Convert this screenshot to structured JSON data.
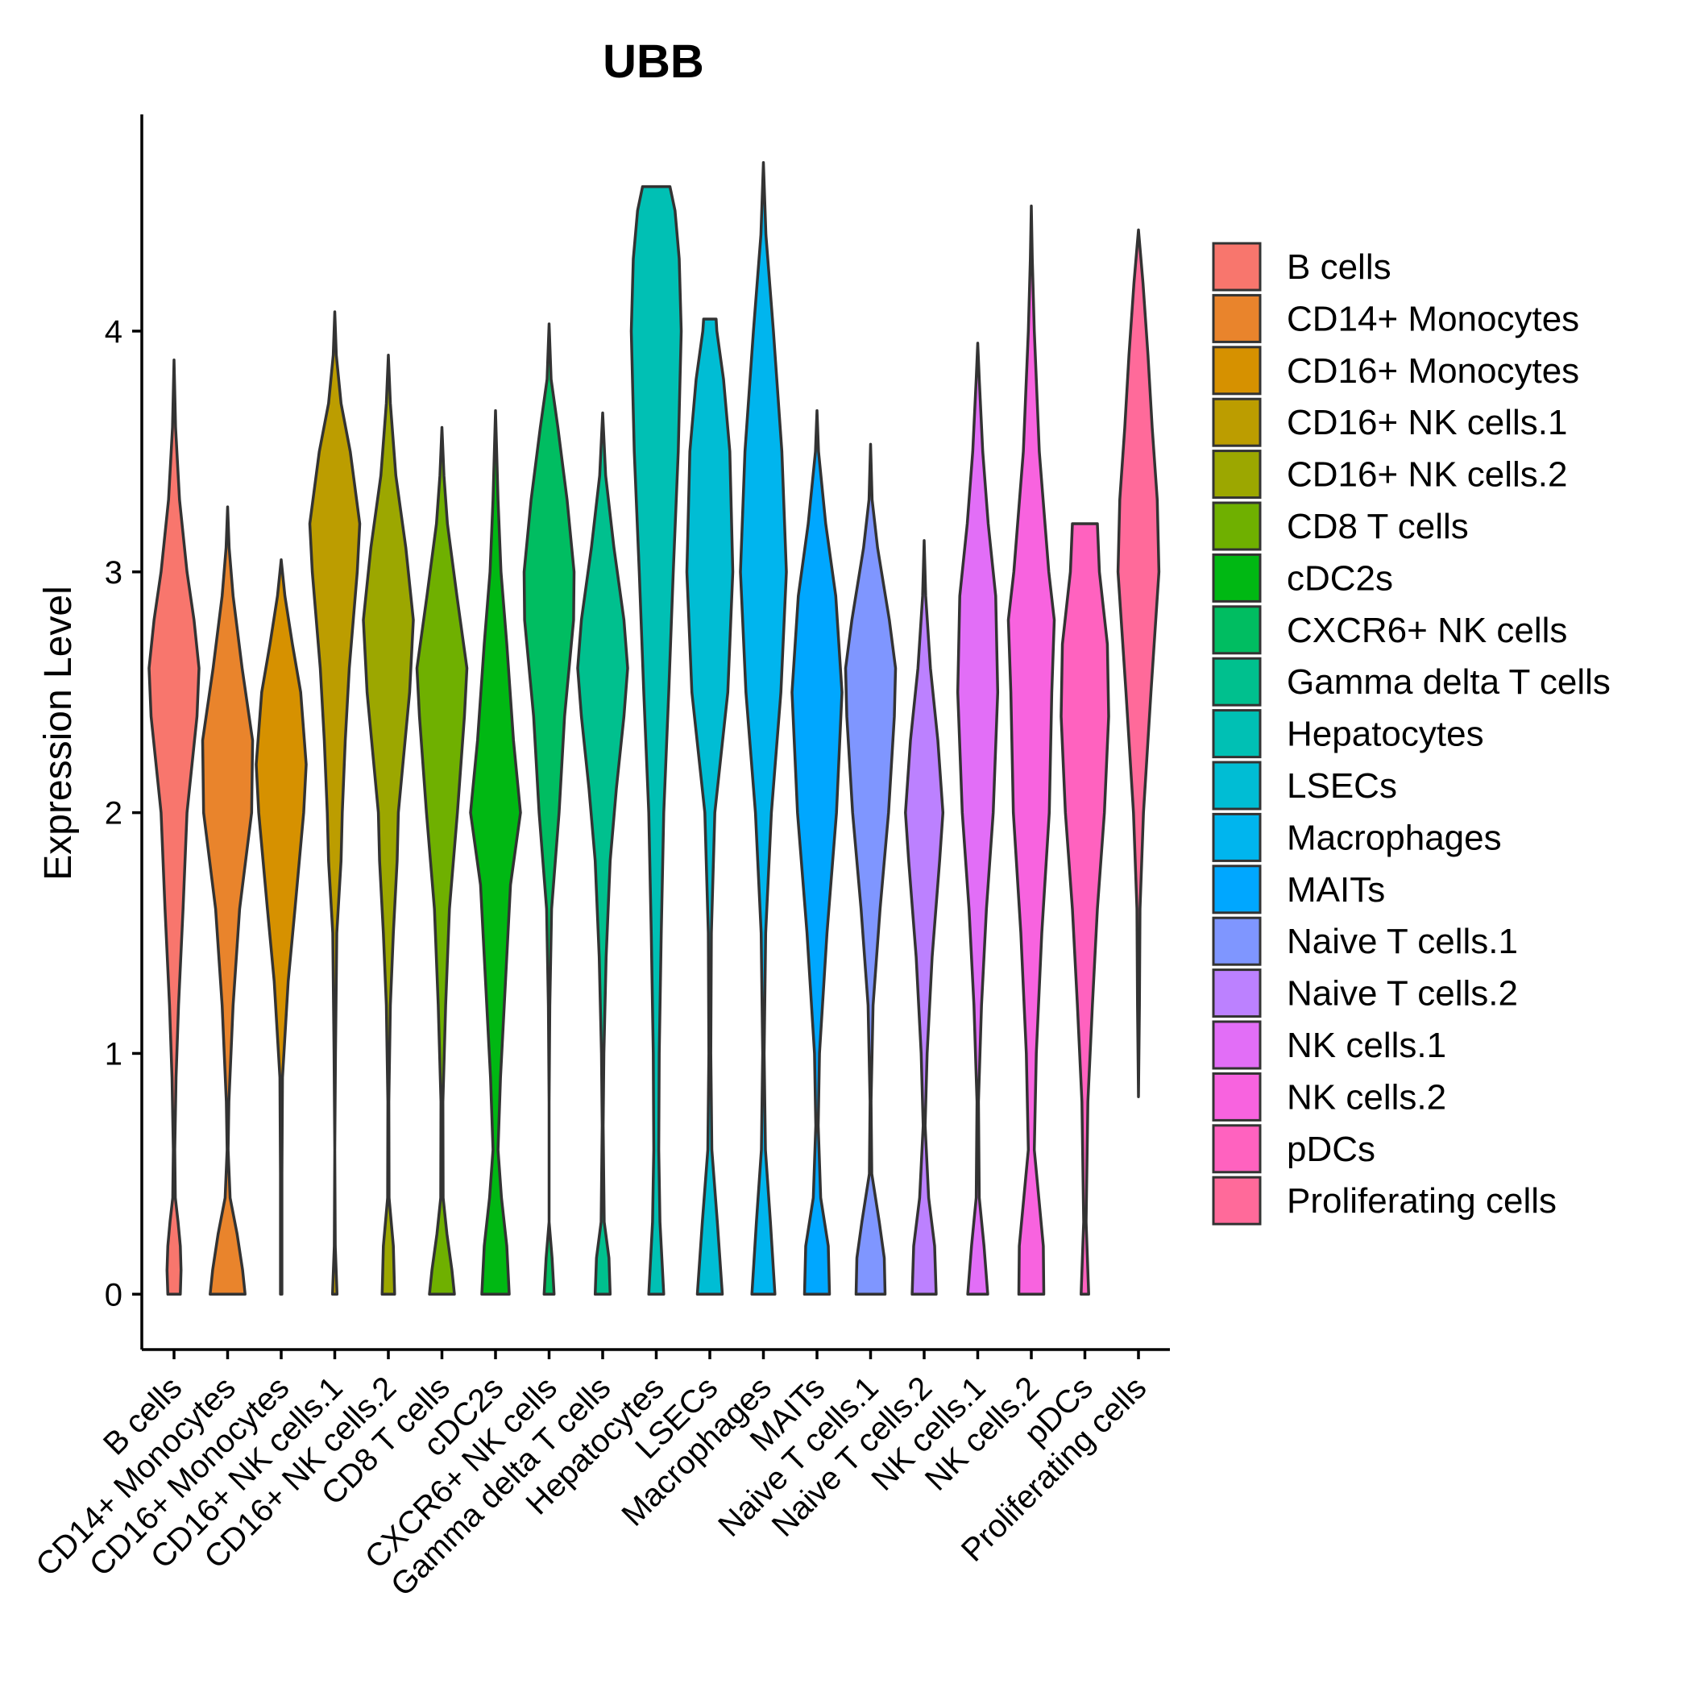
{
  "chart_data": {
    "type": "violin",
    "title": "UBB",
    "xlabel": "",
    "ylabel": "Expression Level",
    "ylim": [
      -0.23,
      4.9
    ],
    "yticks": [
      0,
      1,
      2,
      3,
      4
    ],
    "categories": [
      "B cells",
      "CD14+ Monocytes",
      "CD16+ Monocytes",
      "CD16+ NK cells.1",
      "CD16+ NK cells.2",
      "CD8 T cells",
      "cDC2s",
      "CXCR6+ NK cells",
      "Gamma delta T cells",
      "Hepatocytes",
      "LSECs",
      "Macrophages",
      "MAITs",
      "Naive T cells.1",
      "Naive T cells.2",
      "NK cells.1",
      "NK cells.2",
      "pDCs",
      "Proliferating cells"
    ],
    "colors": [
      "#F8766D",
      "#E9842C",
      "#D69100",
      "#BC9D00",
      "#9CA700",
      "#6FB000",
      "#00B813",
      "#00BD61",
      "#00C08E",
      "#00C0B4",
      "#00BDD4",
      "#00B5EE",
      "#00A7FF",
      "#7F96FF",
      "#BC81FF",
      "#E26EF7",
      "#F863DF",
      "#FF62BF",
      "#FF6A9A"
    ],
    "legend": {
      "position": "right",
      "entries": [
        "B cells",
        "CD14+ Monocytes",
        "CD16+ Monocytes",
        "CD16+ NK cells.1",
        "CD16+ NK cells.2",
        "CD8 T cells",
        "cDC2s",
        "CXCR6+ NK cells",
        "Gamma delta T cells",
        "Hepatocytes",
        "LSECs",
        "Macrophages",
        "MAITs",
        "Naive T cells.1",
        "Naive T cells.2",
        "NK cells.1",
        "NK cells.2",
        "pDCs",
        "Proliferating cells"
      ]
    },
    "series": [
      {
        "name": "B cells",
        "min": 0,
        "max": 3.88,
        "profile": [
          [
            0,
            0.25
          ],
          [
            0.1,
            0.28
          ],
          [
            0.2,
            0.25
          ],
          [
            0.3,
            0.16
          ],
          [
            0.4,
            0.05
          ],
          [
            0.6,
            0.03
          ],
          [
            0.9,
            0.08
          ],
          [
            1.2,
            0.18
          ],
          [
            1.6,
            0.36
          ],
          [
            2.0,
            0.52
          ],
          [
            2.4,
            0.92
          ],
          [
            2.6,
            1.0
          ],
          [
            2.8,
            0.8
          ],
          [
            3.0,
            0.52
          ],
          [
            3.3,
            0.22
          ],
          [
            3.6,
            0.06
          ],
          [
            3.88,
            0.0
          ]
        ]
      },
      {
        "name": "CD14+ Monocytes",
        "min": 0,
        "max": 3.27,
        "profile": [
          [
            0,
            0.7
          ],
          [
            0.1,
            0.6
          ],
          [
            0.25,
            0.38
          ],
          [
            0.4,
            0.1
          ],
          [
            0.6,
            0.02
          ],
          [
            0.8,
            0.05
          ],
          [
            1.2,
            0.22
          ],
          [
            1.6,
            0.48
          ],
          [
            2.0,
            0.96
          ],
          [
            2.3,
            1.0
          ],
          [
            2.6,
            0.58
          ],
          [
            2.9,
            0.22
          ],
          [
            3.1,
            0.06
          ],
          [
            3.27,
            0.0
          ]
        ]
      },
      {
        "name": "CD16+ Monocytes",
        "min": 0,
        "max": 3.05,
        "profile": [
          [
            0,
            0.03
          ],
          [
            0.5,
            0.03
          ],
          [
            0.9,
            0.05
          ],
          [
            1.3,
            0.28
          ],
          [
            1.6,
            0.55
          ],
          [
            2.0,
            0.9
          ],
          [
            2.2,
            1.0
          ],
          [
            2.5,
            0.78
          ],
          [
            2.7,
            0.45
          ],
          [
            2.9,
            0.15
          ],
          [
            3.05,
            0.0
          ]
        ]
      },
      {
        "name": "CD16+ NK cells.1",
        "min": 0,
        "max": 4.08,
        "profile": [
          [
            0,
            0.09
          ],
          [
            0.2,
            0.02
          ],
          [
            0.6,
            0.0
          ],
          [
            1.0,
            0.03
          ],
          [
            1.5,
            0.08
          ],
          [
            1.8,
            0.25
          ],
          [
            2.0,
            0.3
          ],
          [
            2.3,
            0.42
          ],
          [
            2.6,
            0.58
          ],
          [
            3.0,
            0.9
          ],
          [
            3.2,
            1.0
          ],
          [
            3.5,
            0.62
          ],
          [
            3.7,
            0.25
          ],
          [
            3.9,
            0.06
          ],
          [
            4.08,
            0.0
          ]
        ]
      },
      {
        "name": "CD16+ NK cells.2",
        "min": 0,
        "max": 3.9,
        "profile": [
          [
            0,
            0.25
          ],
          [
            0.2,
            0.2
          ],
          [
            0.4,
            0.03
          ],
          [
            0.8,
            0.02
          ],
          [
            1.2,
            0.08
          ],
          [
            1.5,
            0.2
          ],
          [
            1.8,
            0.35
          ],
          [
            2.0,
            0.4
          ],
          [
            2.5,
            0.85
          ],
          [
            2.8,
            1.0
          ],
          [
            3.1,
            0.7
          ],
          [
            3.4,
            0.3
          ],
          [
            3.7,
            0.08
          ],
          [
            3.9,
            0.0
          ]
        ]
      },
      {
        "name": "CD8 T cells",
        "min": 0,
        "max": 3.6,
        "profile": [
          [
            0,
            0.5
          ],
          [
            0.1,
            0.4
          ],
          [
            0.25,
            0.2
          ],
          [
            0.4,
            0.05
          ],
          [
            0.8,
            0.04
          ],
          [
            1.2,
            0.15
          ],
          [
            1.6,
            0.3
          ],
          [
            2.0,
            0.62
          ],
          [
            2.4,
            0.9
          ],
          [
            2.6,
            1.0
          ],
          [
            2.9,
            0.6
          ],
          [
            3.2,
            0.22
          ],
          [
            3.4,
            0.08
          ],
          [
            3.6,
            0.0
          ]
        ]
      },
      {
        "name": "cDC2s",
        "min": 0,
        "max": 3.67,
        "profile": [
          [
            0,
            0.55
          ],
          [
            0.2,
            0.45
          ],
          [
            0.4,
            0.24
          ],
          [
            0.6,
            0.1
          ],
          [
            0.9,
            0.2
          ],
          [
            1.3,
            0.4
          ],
          [
            1.7,
            0.6
          ],
          [
            2.0,
            1.0
          ],
          [
            2.3,
            0.72
          ],
          [
            2.7,
            0.45
          ],
          [
            3.0,
            0.22
          ],
          [
            3.3,
            0.1
          ],
          [
            3.67,
            0.0
          ]
        ]
      },
      {
        "name": "CXCR6+ NK cells",
        "min": 0,
        "max": 4.03,
        "profile": [
          [
            0,
            0.2
          ],
          [
            0.15,
            0.12
          ],
          [
            0.3,
            0.0
          ],
          [
            0.8,
            0.0
          ],
          [
            1.2,
            0.03
          ],
          [
            1.6,
            0.1
          ],
          [
            2.0,
            0.4
          ],
          [
            2.4,
            0.62
          ],
          [
            2.8,
            0.98
          ],
          [
            3.0,
            1.0
          ],
          [
            3.3,
            0.72
          ],
          [
            3.6,
            0.35
          ],
          [
            3.8,
            0.08
          ],
          [
            4.03,
            0.0
          ]
        ]
      },
      {
        "name": "Gamma delta T cells",
        "min": 0,
        "max": 3.66,
        "profile": [
          [
            0,
            0.3
          ],
          [
            0.15,
            0.25
          ],
          [
            0.3,
            0.06
          ],
          [
            0.7,
            0.02
          ],
          [
            1.0,
            0.05
          ],
          [
            1.4,
            0.14
          ],
          [
            1.8,
            0.3
          ],
          [
            2.1,
            0.55
          ],
          [
            2.4,
            0.85
          ],
          [
            2.6,
            1.0
          ],
          [
            2.8,
            0.85
          ],
          [
            3.1,
            0.45
          ],
          [
            3.4,
            0.12
          ],
          [
            3.66,
            0.0
          ]
        ]
      },
      {
        "name": "Hepatocytes",
        "min": 0,
        "max": 4.6,
        "profile": [
          [
            0,
            0.3
          ],
          [
            0.3,
            0.15
          ],
          [
            0.6,
            0.1
          ],
          [
            1.0,
            0.12
          ],
          [
            1.5,
            0.2
          ],
          [
            2.0,
            0.3
          ],
          [
            2.5,
            0.5
          ],
          [
            3.0,
            0.68
          ],
          [
            3.5,
            0.88
          ],
          [
            4.0,
            1.0
          ],
          [
            4.3,
            0.92
          ],
          [
            4.5,
            0.75
          ],
          [
            4.6,
            0.55
          ]
        ]
      },
      {
        "name": "LSECs",
        "min": 0,
        "max": 4.05,
        "profile": [
          [
            0,
            0.5
          ],
          [
            0.3,
            0.3
          ],
          [
            0.6,
            0.08
          ],
          [
            1.0,
            0.04
          ],
          [
            1.5,
            0.06
          ],
          [
            2.0,
            0.2
          ],
          [
            2.5,
            0.72
          ],
          [
            3.0,
            0.92
          ],
          [
            3.5,
            0.8
          ],
          [
            3.8,
            0.55
          ],
          [
            4.0,
            0.28
          ],
          [
            4.05,
            0.25
          ]
        ]
      },
      {
        "name": "Macrophages",
        "min": 0,
        "max": 4.7,
        "profile": [
          [
            0,
            0.46
          ],
          [
            0.3,
            0.28
          ],
          [
            0.6,
            0.08
          ],
          [
            1.0,
            0.03
          ],
          [
            1.5,
            0.09
          ],
          [
            2.0,
            0.32
          ],
          [
            2.5,
            0.7
          ],
          [
            3.0,
            0.92
          ],
          [
            3.5,
            0.74
          ],
          [
            4.0,
            0.4
          ],
          [
            4.4,
            0.1
          ],
          [
            4.7,
            0.0
          ]
        ]
      },
      {
        "name": "MAITs",
        "min": 0,
        "max": 3.67,
        "profile": [
          [
            0,
            0.5
          ],
          [
            0.2,
            0.45
          ],
          [
            0.4,
            0.15
          ],
          [
            0.7,
            0.05
          ],
          [
            1.0,
            0.1
          ],
          [
            1.5,
            0.4
          ],
          [
            2.0,
            0.78
          ],
          [
            2.5,
            1.0
          ],
          [
            2.9,
            0.75
          ],
          [
            3.2,
            0.35
          ],
          [
            3.5,
            0.06
          ],
          [
            3.67,
            0.0
          ]
        ]
      },
      {
        "name": "Naive T cells.1",
        "min": 0,
        "max": 3.53,
        "profile": [
          [
            0,
            0.58
          ],
          [
            0.15,
            0.55
          ],
          [
            0.3,
            0.35
          ],
          [
            0.5,
            0.05
          ],
          [
            0.8,
            0.02
          ],
          [
            1.2,
            0.1
          ],
          [
            1.6,
            0.38
          ],
          [
            2.0,
            0.72
          ],
          [
            2.4,
            0.95
          ],
          [
            2.6,
            1.0
          ],
          [
            2.8,
            0.75
          ],
          [
            3.1,
            0.28
          ],
          [
            3.3,
            0.06
          ],
          [
            3.53,
            0.0
          ]
        ]
      },
      {
        "name": "Naive T cells.2",
        "min": 0,
        "max": 3.13,
        "profile": [
          [
            0,
            0.48
          ],
          [
            0.2,
            0.42
          ],
          [
            0.4,
            0.18
          ],
          [
            0.7,
            0.04
          ],
          [
            1.0,
            0.12
          ],
          [
            1.4,
            0.32
          ],
          [
            1.8,
            0.62
          ],
          [
            2.0,
            0.75
          ],
          [
            2.3,
            0.55
          ],
          [
            2.6,
            0.25
          ],
          [
            2.9,
            0.06
          ],
          [
            3.13,
            0.0
          ]
        ]
      },
      {
        "name": "NK cells.1",
        "min": 0,
        "max": 3.95,
        "profile": [
          [
            0,
            0.4
          ],
          [
            0.2,
            0.25
          ],
          [
            0.4,
            0.06
          ],
          [
            0.8,
            0.03
          ],
          [
            1.2,
            0.15
          ],
          [
            1.6,
            0.35
          ],
          [
            2.0,
            0.62
          ],
          [
            2.5,
            0.8
          ],
          [
            2.9,
            0.72
          ],
          [
            3.2,
            0.42
          ],
          [
            3.5,
            0.2
          ],
          [
            3.8,
            0.06
          ],
          [
            3.95,
            0.0
          ]
        ]
      },
      {
        "name": "NK cells.2",
        "min": 0,
        "max": 4.52,
        "profile": [
          [
            0,
            0.5
          ],
          [
            0.2,
            0.48
          ],
          [
            0.4,
            0.3
          ],
          [
            0.6,
            0.12
          ],
          [
            1.0,
            0.2
          ],
          [
            1.5,
            0.42
          ],
          [
            2.0,
            0.72
          ],
          [
            2.5,
            0.82
          ],
          [
            2.8,
            0.92
          ],
          [
            3.0,
            0.7
          ],
          [
            3.5,
            0.32
          ],
          [
            4.0,
            0.12
          ],
          [
            4.3,
            0.04
          ],
          [
            4.52,
            0.0
          ]
        ]
      },
      {
        "name": "pDCs",
        "min": 0,
        "max": 3.2,
        "profile": [
          [
            0,
            0.15
          ],
          [
            0.3,
            0.05
          ],
          [
            0.8,
            0.12
          ],
          [
            1.2,
            0.3
          ],
          [
            1.6,
            0.5
          ],
          [
            2.0,
            0.78
          ],
          [
            2.4,
            0.95
          ],
          [
            2.7,
            0.9
          ],
          [
            3.0,
            0.58
          ],
          [
            3.2,
            0.5
          ]
        ]
      },
      {
        "name": "Proliferating cells",
        "min": 0.82,
        "max": 4.42,
        "profile": [
          [
            0.82,
            0.0
          ],
          [
            1.2,
            0.04
          ],
          [
            1.6,
            0.06
          ],
          [
            2.0,
            0.2
          ],
          [
            2.5,
            0.5
          ],
          [
            3.0,
            0.82
          ],
          [
            3.3,
            0.75
          ],
          [
            3.6,
            0.55
          ],
          [
            3.9,
            0.38
          ],
          [
            4.2,
            0.18
          ],
          [
            4.42,
            0.0
          ]
        ]
      }
    ]
  }
}
